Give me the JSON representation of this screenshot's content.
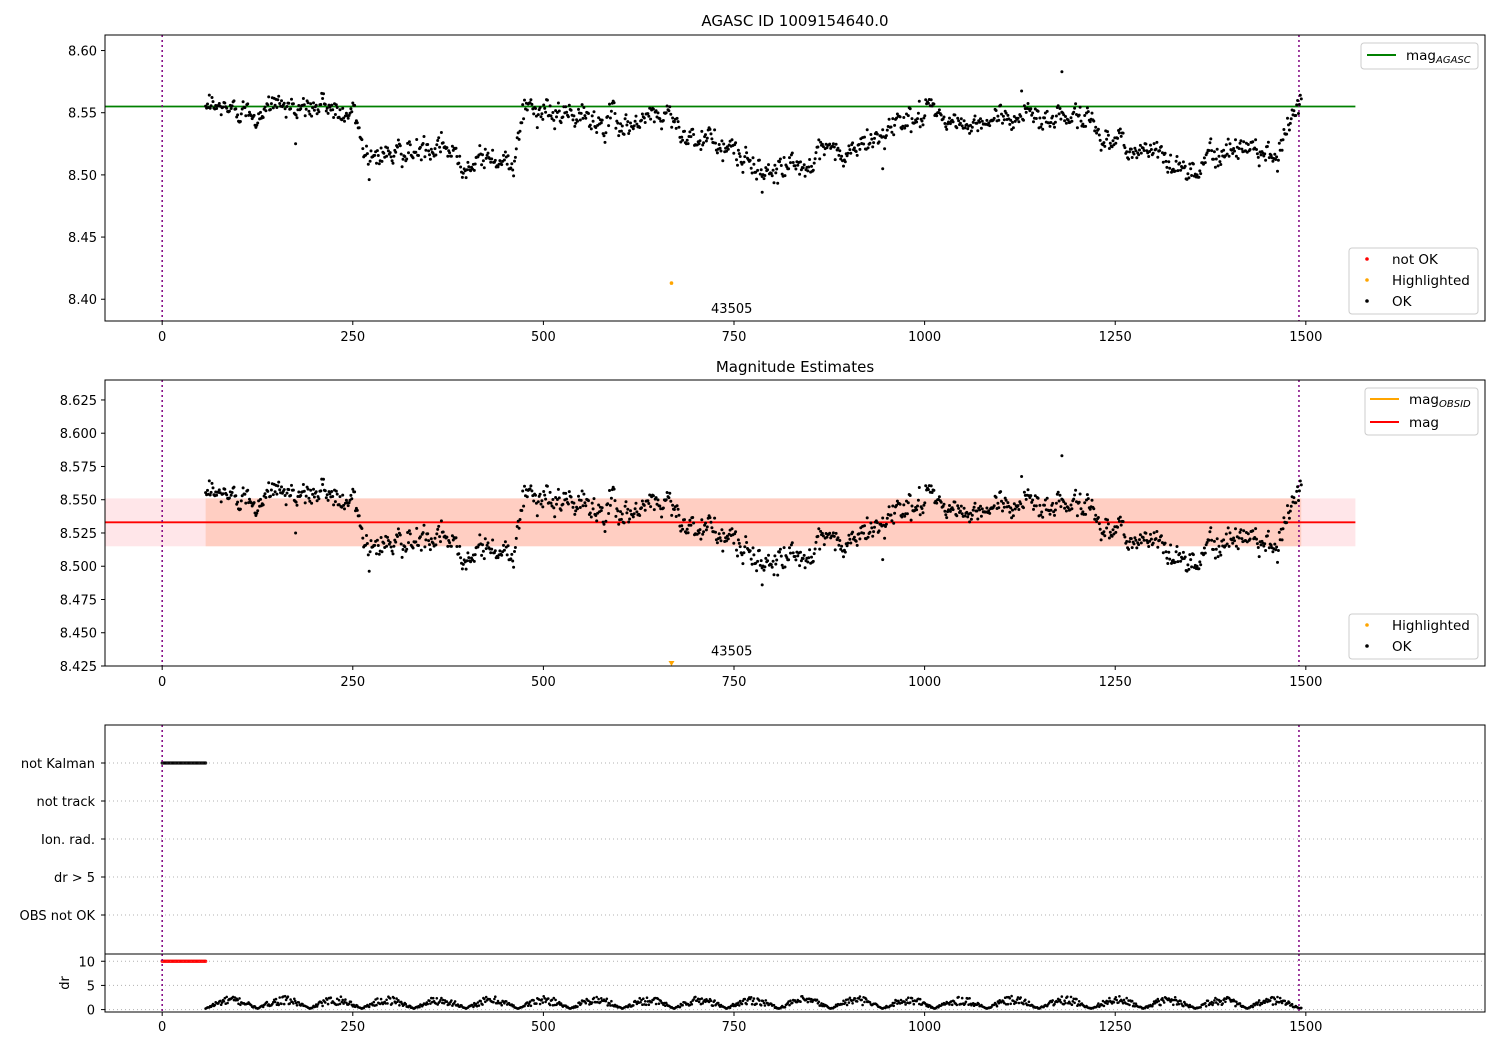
{
  "chart_data": [
    {
      "type": "scatter",
      "title": "AGASC ID 1009154640.0",
      "xlim": [
        -75,
        1735
      ],
      "ylim": [
        8.3825,
        8.6125
      ],
      "xticks": [
        0,
        250,
        500,
        750,
        1000,
        1250,
        1500
      ],
      "yticks": [
        8.4,
        8.45,
        8.5,
        8.55,
        8.6
      ],
      "ytick_labels": [
        "8.40",
        "8.45",
        "8.50",
        "8.55",
        "8.60"
      ],
      "grid": false,
      "lines": [
        {
          "name": "mag_AGASC",
          "label_main": "mag",
          "label_sub": "AGASC",
          "y": 8.555,
          "xmin": -75,
          "xmax": 1565,
          "color": "#008000"
        }
      ],
      "vlines": [
        0,
        1491
      ],
      "legend_lines_position": "top-right",
      "legend_points_position": "bottom-right",
      "point_legend": [
        {
          "label": "not OK",
          "color": "#ff0000"
        },
        {
          "label": "Highlighted",
          "color": "#ffa500"
        },
        {
          "label": "OK",
          "color": "#000000"
        }
      ],
      "highlighted": [
        {
          "x": 668,
          "y": 8.413
        }
      ],
      "annotations": [
        {
          "text": "43505",
          "x": 747,
          "y": 8.389
        }
      ],
      "series_ok": {
        "x_start": 57,
        "x_end": 1494,
        "n": 1200,
        "trend": [
          [
            57,
            8.551
          ],
          [
            150,
            8.556
          ],
          [
            250,
            8.552
          ],
          [
            265,
            8.52
          ],
          [
            350,
            8.517
          ],
          [
            460,
            8.512
          ],
          [
            470,
            8.549
          ],
          [
            600,
            8.542
          ],
          [
            665,
            8.551
          ],
          [
            680,
            8.538
          ],
          [
            785,
            8.505
          ],
          [
            800,
            8.507
          ],
          [
            900,
            8.516
          ],
          [
            945,
            8.533
          ],
          [
            980,
            8.55
          ],
          [
            1070,
            8.538
          ],
          [
            1120,
            8.55
          ],
          [
            1200,
            8.548
          ],
          [
            1255,
            8.526
          ],
          [
            1320,
            8.513
          ],
          [
            1365,
            8.503
          ],
          [
            1375,
            8.523
          ],
          [
            1460,
            8.522
          ],
          [
            1494,
            8.555
          ]
        ],
        "noise": 0.0065
      }
    },
    {
      "type": "scatter",
      "title": "Magnitude Estimates",
      "xlim": [
        -75,
        1735
      ],
      "ylim": [
        8.425,
        8.64
      ],
      "xticks": [
        0,
        250,
        500,
        750,
        1000,
        1250,
        1500
      ],
      "yticks": [
        8.425,
        8.45,
        8.475,
        8.5,
        8.525,
        8.55,
        8.575,
        8.6,
        8.625
      ],
      "ytick_labels": [
        "8.425",
        "8.450",
        "8.475",
        "8.500",
        "8.525",
        "8.550",
        "8.575",
        "8.600",
        "8.625"
      ],
      "grid": false,
      "lines": [
        {
          "name": "mag_OBSID",
          "label_main": "mag",
          "label_sub": "OBSID",
          "color": "#ffa500"
        },
        {
          "name": "mag",
          "label_main": "mag",
          "label_sub": "",
          "y": 8.533,
          "xmin": -75,
          "xmax": 1565,
          "color": "#ff0000"
        }
      ],
      "bands": [
        {
          "y0": 8.515,
          "y1": 8.551,
          "xmin": -75,
          "xmax": 1565,
          "color": "#ffb6c1",
          "opacity": 0.35
        },
        {
          "y0": 8.515,
          "y1": 8.551,
          "xmin": 57,
          "xmax": 1494,
          "color": "#ffa07a",
          "opacity": 0.35
        }
      ],
      "vlines": [
        0,
        1491
      ],
      "legend_lines_position": "top-right",
      "legend_points_position": "bottom-right",
      "point_legend": [
        {
          "label": "Highlighted",
          "color": "#ffa500"
        },
        {
          "label": "OK",
          "color": "#000000"
        }
      ],
      "highlighted": [
        {
          "x": 668,
          "y": 8.4265,
          "marker": "triangle-down"
        }
      ],
      "annotations": [
        {
          "text": "43505",
          "x": 747,
          "y": 8.433
        }
      ]
    },
    {
      "type": "scatter",
      "title": "",
      "xlim": [
        -75,
        1735
      ],
      "categories": [
        "not Kalman",
        "not track",
        "Ion. rad.",
        "dr > 5",
        "OBS not OK"
      ],
      "flags": [
        {
          "category": "not Kalman",
          "x0": 0,
          "x1": 57
        }
      ],
      "grid": true,
      "vlines": [
        0,
        1491
      ]
    },
    {
      "type": "scatter",
      "title": "",
      "ylabel": "dr",
      "xlim": [
        -75,
        1735
      ],
      "ylim": [
        -0.5,
        11.5
      ],
      "xticks": [
        0,
        250,
        500,
        750,
        1000,
        1250,
        1500
      ],
      "yticks": [
        0,
        5,
        10
      ],
      "ytick_labels": [
        "0",
        "5",
        "10"
      ],
      "grid": true,
      "vlines": [
        0,
        1491
      ],
      "red_points": {
        "x0": 0,
        "x1": 57,
        "y": 10
      },
      "series_dr": {
        "x_start": 57,
        "x_end": 1494,
        "n": 1200,
        "max": 2.6
      }
    }
  ],
  "annotation_text": "43505"
}
